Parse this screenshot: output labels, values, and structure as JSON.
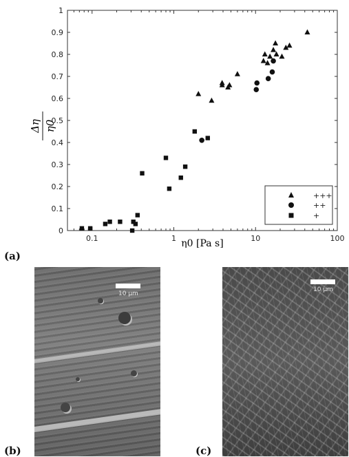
{
  "panels": {
    "a": "(a)",
    "b": "(b)",
    "c": "(c)"
  },
  "scale_bar_label": "10 μm",
  "chart_data": {
    "type": "scatter",
    "ylabel": "Δη / η0",
    "ylabel_num": "Δη",
    "ylabel_den": "η0",
    "xlabel": "η0 [Pa s]",
    "xscale": "log",
    "xlim": [
      0.05,
      100
    ],
    "ylim": [
      0,
      1
    ],
    "xticks": [
      0.1,
      1,
      10,
      100
    ],
    "xtick_labels": [
      "0.1",
      "1",
      "10",
      "100"
    ],
    "yticks": [
      0,
      0.1,
      0.2,
      0.3,
      0.4,
      0.5,
      0.6,
      0.7,
      0.8,
      0.9,
      1
    ],
    "ytick_labels": [
      "0",
      "0.1",
      "0.2",
      "0.3",
      "0.4",
      "0.5",
      "0.6",
      "0.7",
      "0.8",
      "0.9",
      "1"
    ],
    "legend_position": "bottom-right",
    "series": [
      {
        "name": "+++",
        "marker": "triangle",
        "points": [
          [
            2.0,
            0.62
          ],
          [
            2.9,
            0.59
          ],
          [
            3.9,
            0.66
          ],
          [
            3.9,
            0.67
          ],
          [
            4.6,
            0.65
          ],
          [
            4.8,
            0.66
          ],
          [
            6.0,
            0.71
          ],
          [
            12.5,
            0.77
          ],
          [
            13.0,
            0.8
          ],
          [
            14.0,
            0.76
          ],
          [
            15.0,
            0.79
          ],
          [
            16.5,
            0.82
          ],
          [
            17.5,
            0.85
          ],
          [
            18.0,
            0.8
          ],
          [
            21.0,
            0.79
          ],
          [
            23.5,
            0.83
          ],
          [
            26.0,
            0.84
          ],
          [
            43.0,
            0.9
          ]
        ]
      },
      {
        "name": "++",
        "marker": "circle",
        "points": [
          [
            2.2,
            0.41
          ],
          [
            10.2,
            0.64
          ],
          [
            10.4,
            0.67
          ],
          [
            14.3,
            0.69
          ],
          [
            16.0,
            0.72
          ],
          [
            16.5,
            0.77
          ]
        ]
      },
      {
        "name": "+",
        "marker": "square",
        "points": [
          [
            0.075,
            0.01
          ],
          [
            0.095,
            0.01
          ],
          [
            0.145,
            0.03
          ],
          [
            0.165,
            0.04
          ],
          [
            0.22,
            0.04
          ],
          [
            0.32,
            0.04
          ],
          [
            0.31,
            0.0
          ],
          [
            0.34,
            0.03
          ],
          [
            0.36,
            0.07
          ],
          [
            0.41,
            0.26
          ],
          [
            0.8,
            0.33
          ],
          [
            0.88,
            0.19
          ],
          [
            1.22,
            0.24
          ],
          [
            1.38,
            0.29
          ],
          [
            1.8,
            0.45
          ],
          [
            2.6,
            0.42
          ]
        ]
      }
    ]
  }
}
